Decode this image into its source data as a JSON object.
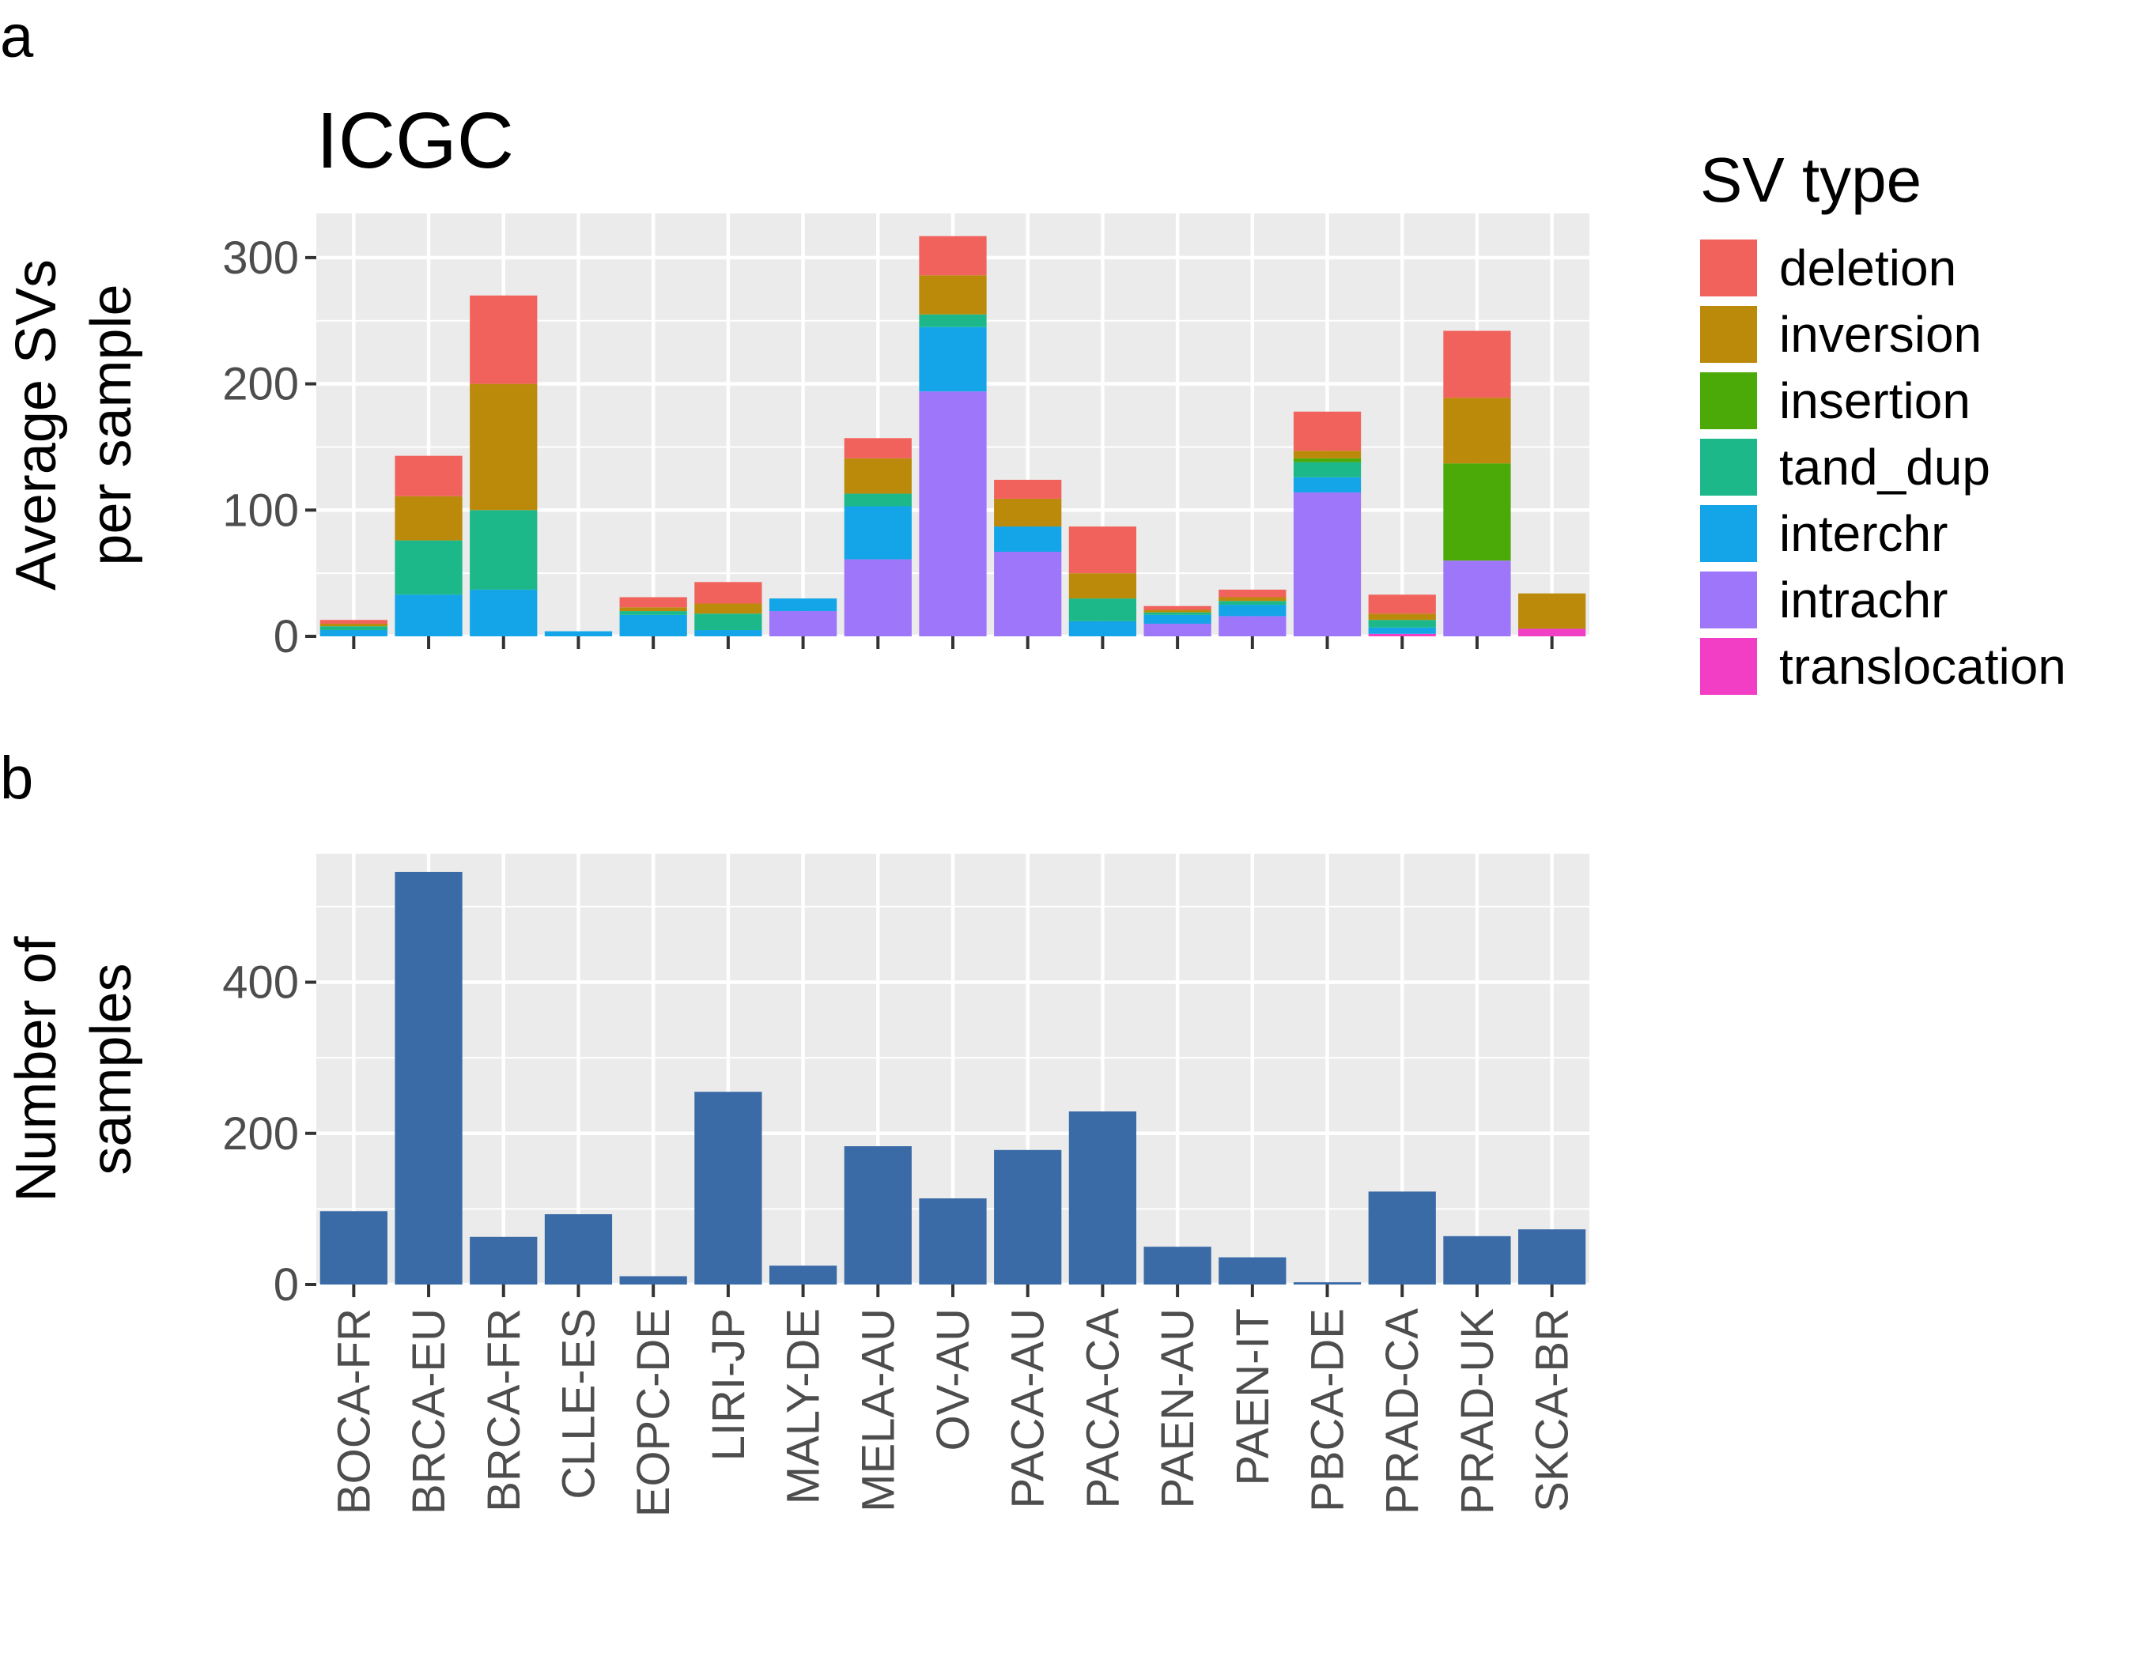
{
  "panels": {
    "a": "a",
    "b": "b"
  },
  "chart_data": [
    {
      "type": "bar",
      "stacked": true,
      "title": "ICGC",
      "ylabel": [
        "Average SVs",
        "per sample"
      ],
      "xlabel": "",
      "ylim": [
        0,
        335
      ],
      "yticks": [
        0,
        100,
        200,
        300
      ],
      "grid": true,
      "legend_position": "right",
      "categories": [
        "BOCA-FR",
        "BRCA-EU",
        "BRCA-FR",
        "CLLE-ES",
        "EOPC-DE",
        "LIRI-JP",
        "MALY-DE",
        "MELA-AU",
        "OV-AU",
        "PACA-AU",
        "PACA-CA",
        "PAEN-AU",
        "PAEN-IT",
        "PBCA-DE",
        "PRAD-CA",
        "PRAD-UK",
        "SKCA-BR"
      ],
      "series": [
        {
          "name": "translocation",
          "color": "#F13EC4",
          "values": [
            0,
            0,
            0,
            0,
            0,
            0,
            0,
            0,
            0,
            0,
            0,
            0,
            0,
            0,
            2,
            0,
            6
          ]
        },
        {
          "name": "intrachr",
          "color": "#9E76F9",
          "values": [
            0,
            0,
            0,
            0,
            0,
            0,
            20,
            61,
            194,
            67,
            0,
            10,
            16,
            114,
            0,
            60,
            0
          ]
        },
        {
          "name": "interchr",
          "color": "#13A5E7",
          "values": [
            5,
            33,
            37,
            4,
            17,
            5,
            10,
            42,
            51,
            20,
            12,
            7,
            9,
            12,
            5,
            0,
            0
          ]
        },
        {
          "name": "tand_dup",
          "color": "#1DB889",
          "values": [
            3,
            43,
            63,
            0,
            3,
            13,
            0,
            10,
            10,
            0,
            18,
            2,
            3,
            12,
            6,
            0,
            0
          ]
        },
        {
          "name": "insertion",
          "color": "#4BAA08",
          "values": [
            0,
            0,
            0,
            0,
            0,
            0,
            0,
            0,
            0,
            0,
            0,
            0,
            0,
            3,
            0,
            77,
            0
          ]
        },
        {
          "name": "inversion",
          "color": "#BB8A0B",
          "values": [
            2,
            35,
            100,
            0,
            3,
            8,
            0,
            28,
            31,
            22,
            20,
            2,
            3,
            6,
            5,
            52,
            28
          ]
        },
        {
          "name": "deletion",
          "color": "#F1625D",
          "values": [
            3,
            32,
            70,
            0,
            8,
            17,
            0,
            16,
            31,
            15,
            37,
            3,
            6,
            31,
            15,
            53,
            0
          ]
        }
      ]
    },
    {
      "type": "bar",
      "title": "",
      "ylabel": [
        "Number of",
        "samples"
      ],
      "xlabel": "",
      "ylim": [
        0,
        570
      ],
      "yticks": [
        0,
        200,
        400
      ],
      "grid": true,
      "color": "#3A6BA7",
      "categories": [
        "BOCA-FR",
        "BRCA-EU",
        "BRCA-FR",
        "CLLE-ES",
        "EOPC-DE",
        "LIRI-JP",
        "MALY-DE",
        "MELA-AU",
        "OV-AU",
        "PACA-AU",
        "PACA-CA",
        "PAEN-AU",
        "PAEN-IT",
        "PBCA-DE",
        "PRAD-CA",
        "PRAD-UK",
        "SKCA-BR"
      ],
      "values": [
        97,
        546,
        63,
        93,
        11,
        255,
        25,
        183,
        114,
        178,
        229,
        50,
        36,
        3,
        123,
        64,
        73
      ]
    }
  ],
  "legend": {
    "title": "SV type",
    "items": [
      {
        "label": "deletion",
        "color": "#F1625D"
      },
      {
        "label": "inversion",
        "color": "#BB8A0B"
      },
      {
        "label": "insertion",
        "color": "#4BAA08"
      },
      {
        "label": "tand_dup",
        "color": "#1DB889"
      },
      {
        "label": "interchr",
        "color": "#13A5E7"
      },
      {
        "label": "intrachr",
        "color": "#9E76F9"
      },
      {
        "label": "translocation",
        "color": "#F13EC4"
      }
    ]
  }
}
